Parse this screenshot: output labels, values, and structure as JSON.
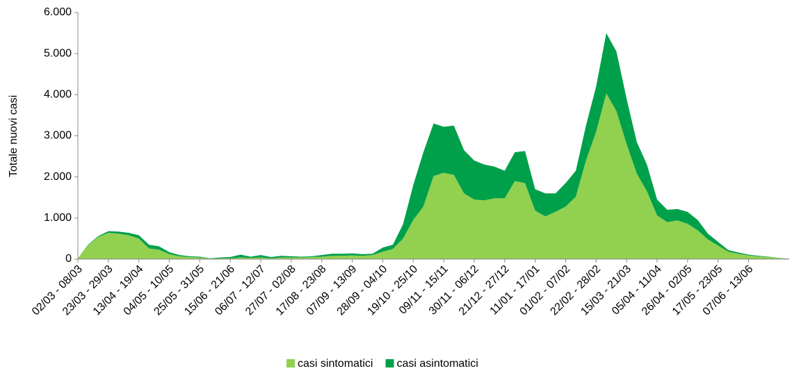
{
  "chart_data": {
    "type": "stacked-area",
    "y_label": "Totale nuovi casi",
    "categories": [
      "02/03 - 08/03",
      null,
      null,
      "23/03 - 29/03",
      null,
      null,
      "13/04 - 19/04",
      null,
      null,
      "04/05 - 10/05",
      null,
      null,
      "25/05 - 31/05",
      null,
      null,
      "15/06 - 21/06",
      null,
      null,
      "06/07 - 12/07",
      null,
      null,
      "27/07 - 02/08",
      null,
      null,
      "17/08 - 23/08",
      null,
      null,
      "07/09 - 13/09",
      null,
      null,
      "28/09 - 04/10",
      null,
      null,
      "19/10 - 25/10",
      null,
      null,
      "09/11 - 15/11",
      null,
      null,
      "30/11 - 06/12",
      null,
      null,
      "21/12 - 27/12",
      null,
      null,
      "11/01 - 17/01",
      null,
      null,
      "01/02 - 07/02",
      null,
      null,
      "22/02 - 28/02",
      null,
      null,
      "15/03 - 21/03",
      null,
      null,
      "05/04 - 11/04",
      null,
      null,
      "26/04 - 02/05",
      null,
      null,
      "17/05 - 23/05",
      null,
      null,
      "07/06 - 13/06",
      null,
      null,
      null,
      null
    ],
    "series": [
      {
        "name": "casi sintomatici",
        "color": "#92d050",
        "values": [
          20,
          340,
          540,
          640,
          620,
          580,
          500,
          260,
          230,
          120,
          70,
          50,
          40,
          10,
          20,
          20,
          40,
          30,
          40,
          20,
          40,
          40,
          40,
          50,
          60,
          80,
          80,
          90,
          80,
          100,
          180,
          250,
          500,
          950,
          1280,
          2020,
          2100,
          2050,
          1600,
          1450,
          1430,
          1480,
          1480,
          1900,
          1850,
          1180,
          1040,
          1150,
          1280,
          1520,
          2400,
          3100,
          4030,
          3600,
          2800,
          2080,
          1650,
          1060,
          900,
          940,
          860,
          700,
          480,
          330,
          180,
          130,
          90,
          65,
          50,
          25,
          5
        ]
      },
      {
        "name": "casi asintomatici",
        "color": "#00a04b",
        "values": [
          0,
          10,
          20,
          40,
          50,
          60,
          80,
          90,
          80,
          50,
          30,
          20,
          20,
          10,
          20,
          30,
          70,
          30,
          60,
          30,
          40,
          30,
          20,
          20,
          40,
          50,
          50,
          50,
          40,
          30,
          100,
          100,
          350,
          850,
          1320,
          1280,
          1120,
          1200,
          1050,
          950,
          870,
          770,
          670,
          700,
          780,
          520,
          560,
          450,
          570,
          630,
          850,
          1100,
          1470,
          1450,
          1100,
          770,
          650,
          390,
          300,
          280,
          290,
          250,
          140,
          90,
          40,
          30,
          20,
          15,
          10,
          5,
          5
        ]
      }
    ],
    "ylim": [
      0,
      6000
    ],
    "yticks": [
      0,
      {
        "value": 1000,
        "label": "1.000"
      },
      {
        "value": 2000,
        "label": "2.000"
      },
      {
        "value": 3000,
        "label": "3.000"
      },
      {
        "value": 4000,
        "label": "4.000"
      },
      {
        "value": 5000,
        "label": "5.000"
      },
      {
        "value": 6000,
        "label": "6.000"
      }
    ],
    "legend": "bottom"
  }
}
